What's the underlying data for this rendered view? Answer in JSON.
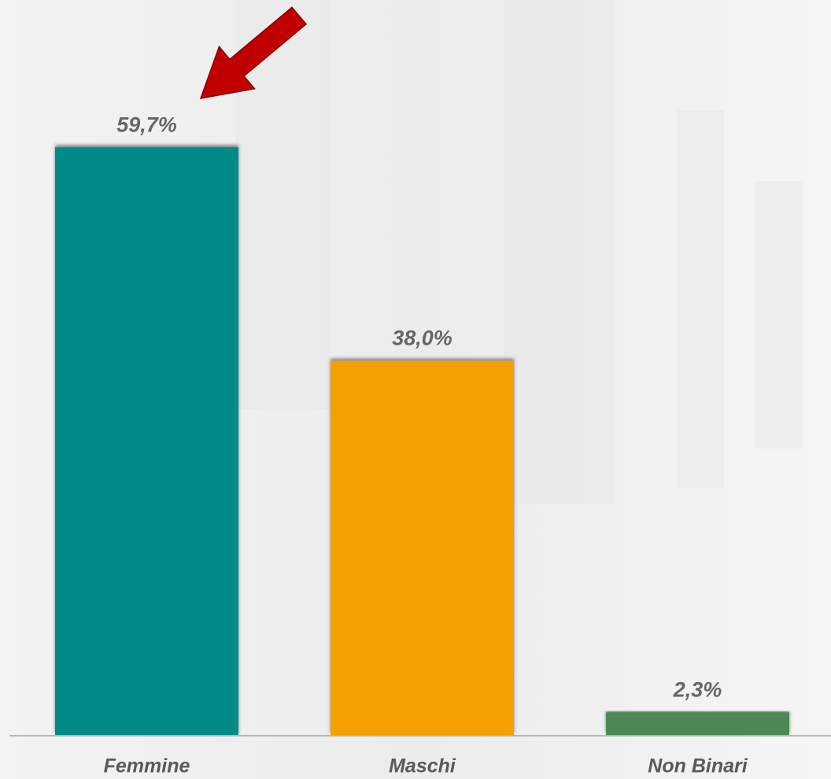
{
  "chart_data": {
    "type": "bar",
    "categories": [
      "Femmine",
      "Maschi",
      "Non Binari"
    ],
    "values": [
      59.7,
      38.0,
      2.3
    ],
    "value_labels": [
      "59,7%",
      "38,0%",
      "2,3%"
    ],
    "colors": [
      "#028b8b",
      "#f4a000",
      "#4b8b52"
    ]
  }
}
